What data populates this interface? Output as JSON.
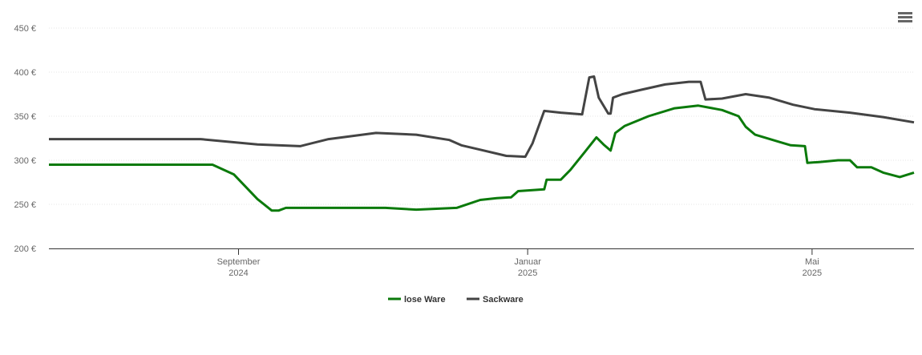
{
  "chart_data": {
    "type": "line",
    "series": [
      {
        "name": "lose Ware",
        "color": "#0b7a0b",
        "x": [
          164,
          233,
          242,
          252,
          258,
          261,
          264,
          306,
          319,
          336,
          346,
          353,
          359,
          362,
          373,
          374,
          380,
          384,
          390,
          395,
          398,
          401,
          403,
          407,
          417,
          428,
          438,
          448,
          455,
          458,
          462,
          472,
          477,
          483,
          484,
          489,
          497,
          502,
          505,
          511,
          516,
          523,
          529
        ],
        "values": [
          295,
          295,
          284,
          256,
          243,
          243,
          246,
          246,
          244,
          246,
          255,
          257,
          258,
          265,
          267,
          278,
          278,
          289,
          309,
          326,
          318,
          311,
          331,
          339,
          350,
          359,
          362,
          357,
          350,
          338,
          329,
          321,
          317,
          316,
          297,
          298,
          300,
          300,
          292,
          292,
          286,
          281,
          286
        ]
      },
      {
        "name": "Sackware",
        "color": "#444444",
        "x": [
          164,
          228,
          252,
          270,
          282,
          302,
          319,
          333,
          338,
          346,
          357,
          365,
          368,
          373,
          380,
          389,
          392,
          394,
          396,
          400,
          401,
          402,
          406,
          414,
          424,
          434,
          439,
          441,
          448,
          458,
          468,
          478,
          487,
          502,
          516,
          529
        ],
        "values": [
          324,
          324,
          318,
          316,
          324,
          331,
          329,
          323,
          317,
          312,
          305,
          304,
          319,
          356,
          354,
          352,
          394,
          395,
          371,
          353,
          353,
          371,
          375,
          380,
          386,
          389,
          389,
          369,
          370,
          375,
          371,
          363,
          358,
          354,
          349,
          343
        ]
      }
    ],
    "xlim": [
      164,
      529
    ],
    "xticks": [
      {
        "value": 244,
        "label": [
          "September",
          "2024"
        ]
      },
      {
        "value": 366,
        "label": [
          "Januar",
          "2025"
        ]
      },
      {
        "value": 486,
        "label": [
          "Mai",
          "2025"
        ]
      }
    ],
    "ylim": [
      200,
      450
    ],
    "yticks": [
      {
        "value": 200,
        "label": "200 €"
      },
      {
        "value": 250,
        "label": "250 €"
      },
      {
        "value": 300,
        "label": "300 €"
      },
      {
        "value": 350,
        "label": "350 €"
      },
      {
        "value": 400,
        "label": "400 €"
      },
      {
        "value": 450,
        "label": "450 €"
      }
    ],
    "grid": true
  }
}
